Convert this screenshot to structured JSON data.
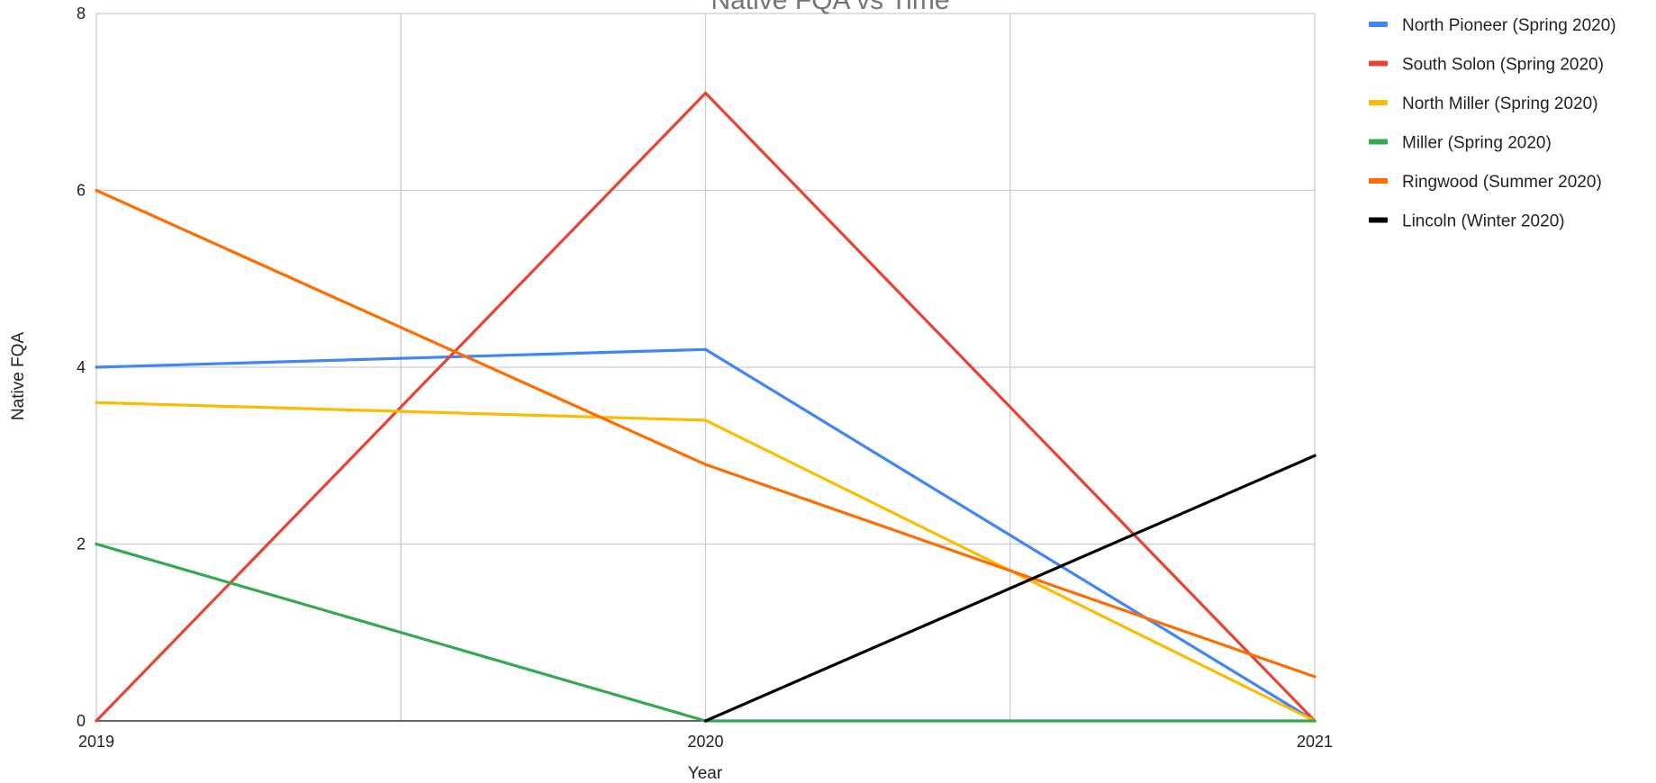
{
  "chart_data": {
    "type": "line",
    "title": "Native FQA vs Time",
    "xlabel": "Year",
    "ylabel": "Native FQA",
    "x": [
      "2019",
      "2020",
      "2021"
    ],
    "xlim": [
      2019,
      2021
    ],
    "ylim": [
      0,
      8
    ],
    "yticks": [
      "0",
      "2",
      "4",
      "6",
      "8"
    ],
    "grid": true,
    "legend_position": "right",
    "series": [
      {
        "name": "North Pioneer (Spring 2020)",
        "color": "#4285F4",
        "values": [
          4.0,
          4.2,
          0.0
        ]
      },
      {
        "name": "South Solon (Spring 2020)",
        "color": "#EA4335",
        "values": [
          0.0,
          7.1,
          0.0
        ]
      },
      {
        "name": "North Miller (Spring 2020)",
        "color": "#FBBC04",
        "values": [
          3.6,
          3.4,
          0.0
        ]
      },
      {
        "name": "Miller (Spring 2020)",
        "color": "#34A853",
        "values": [
          2.0,
          0.0,
          0.0
        ]
      },
      {
        "name": "Ringwood (Summer 2020)",
        "color": "#FF6D01",
        "values": [
          6.0,
          2.9,
          0.5
        ]
      },
      {
        "name": "Lincoln (Winter 2020)",
        "color": "#000000",
        "values": [
          null,
          0.0,
          3.0
        ]
      }
    ]
  }
}
